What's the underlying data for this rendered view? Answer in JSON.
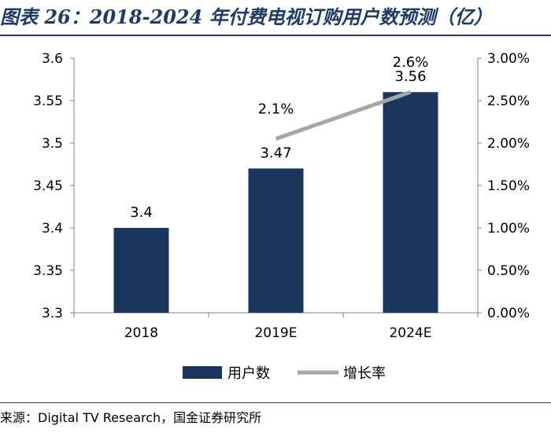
{
  "header": {
    "title": "图表 26：2018-2024 年付费电视订购用户数预测（亿）"
  },
  "footer": {
    "source": "来源：Digital TV Research，国金证券研究所"
  },
  "chart_data": {
    "type": "bar",
    "title": "图表 26：2018-2024 年付费电视订购用户数预测（亿）",
    "categories": [
      "2018",
      "2019E",
      "2024E"
    ],
    "series": [
      {
        "name": "用户数",
        "kind": "bar",
        "axis": "left",
        "color": "#1b365d",
        "values": [
          3.4,
          3.47,
          3.56
        ],
        "labels": [
          "3.4",
          "3.47",
          "3.56"
        ]
      },
      {
        "name": "增长率",
        "kind": "line",
        "axis": "right",
        "color": "#a6a6a6",
        "values": [
          null,
          0.0205,
          0.026
        ],
        "labels": [
          null,
          "2.1%",
          "2.6%"
        ]
      }
    ],
    "y_left": {
      "min": 3.3,
      "max": 3.6,
      "ticks": [
        3.3,
        3.35,
        3.4,
        3.45,
        3.5,
        3.55,
        3.6
      ],
      "tick_labels": [
        "3.3",
        "3.35",
        "3.4",
        "3.45",
        "3.5",
        "3.55",
        "3.6"
      ]
    },
    "y_right": {
      "min": 0,
      "max": 0.03,
      "ticks": [
        0,
        0.005,
        0.01,
        0.015,
        0.02,
        0.025,
        0.03
      ],
      "tick_labels": [
        "0.00%",
        "0.50%",
        "1.00%",
        "1.50%",
        "2.00%",
        "2.50%",
        "3.00%"
      ]
    },
    "grid": false,
    "legend": {
      "position": "bottom"
    }
  }
}
